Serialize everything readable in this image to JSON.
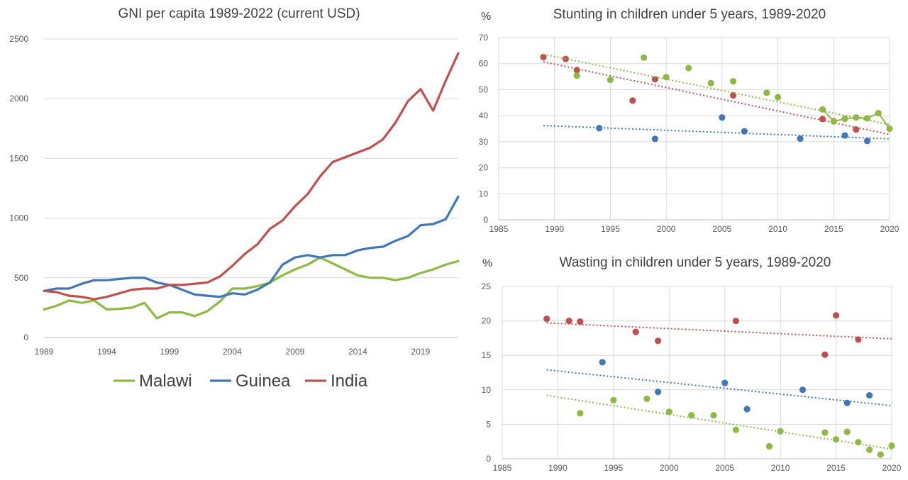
{
  "colors": {
    "Malawi": "#8db944",
    "Guinea": "#3f77b8",
    "India": "#c0504d",
    "grid": "#d9d9d9",
    "axis": "#bfbfbf",
    "text": "#595959"
  },
  "chart_data": [
    {
      "type": "line",
      "title": "GNI per capita 1989-2022 (current USD)",
      "xlabel": "",
      "ylabel": "",
      "xlim": [
        1989,
        2022
      ],
      "ylim": [
        0,
        2500
      ],
      "yticks": [
        0,
        500,
        1000,
        1500,
        2000,
        2500
      ],
      "xticks": [
        1989,
        1994,
        1999,
        2004,
        2009,
        2014,
        2019
      ],
      "grid": "horizontal",
      "legend": "bottom",
      "x": [
        1989,
        1990,
        1991,
        1992,
        1993,
        1994,
        1995,
        1996,
        1997,
        1998,
        1999,
        2000,
        2001,
        2002,
        2003,
        2004,
        2005,
        2006,
        2007,
        2008,
        2009,
        2010,
        2011,
        2012,
        2013,
        2014,
        2015,
        2016,
        2017,
        2018,
        2019,
        2020,
        2021,
        2022
      ],
      "series": [
        {
          "name": "Malawi",
          "color_key": "Malawi",
          "values": [
            235,
            265,
            310,
            290,
            310,
            235,
            240,
            250,
            290,
            160,
            210,
            210,
            180,
            220,
            300,
            410,
            410,
            430,
            460,
            520,
            570,
            610,
            670,
            620,
            570,
            520,
            500,
            500,
            480,
            500,
            540,
            570,
            610,
            640
          ]
        },
        {
          "name": "Guinea",
          "color_key": "Guinea",
          "values": [
            390,
            410,
            410,
            450,
            480,
            480,
            490,
            500,
            500,
            460,
            440,
            400,
            360,
            350,
            340,
            370,
            360,
            400,
            460,
            610,
            670,
            690,
            670,
            690,
            690,
            730,
            750,
            760,
            810,
            850,
            940,
            950,
            990,
            1180
          ]
        },
        {
          "name": "India",
          "color_key": "India",
          "values": [
            390,
            380,
            350,
            340,
            320,
            340,
            370,
            400,
            410,
            410,
            440,
            440,
            450,
            460,
            510,
            600,
            700,
            780,
            910,
            980,
            1100,
            1200,
            1350,
            1470,
            1510,
            1550,
            1590,
            1660,
            1800,
            1980,
            2080,
            1900,
            2150,
            2380
          ]
        }
      ]
    },
    {
      "type": "scatter",
      "title": "Stunting in children under 5 years, 1989-2020",
      "ylabel": "%",
      "xlabel": "",
      "xlim": [
        1985,
        2020
      ],
      "ylim": [
        0,
        70
      ],
      "xticks": [
        1985,
        1990,
        1995,
        2000,
        2005,
        2010,
        2015,
        2020
      ],
      "yticks": [
        0,
        10,
        20,
        30,
        40,
        50,
        60,
        70
      ],
      "grid": "both",
      "series": [
        {
          "name": "India",
          "color_key": "India",
          "points": [
            [
              1989,
              62.5
            ],
            [
              1991,
              61.8
            ],
            [
              1992,
              57.5
            ],
            [
              1997,
              45.8
            ],
            [
              1999,
              54.0
            ],
            [
              2006,
              47.8
            ],
            [
              2014,
              38.7
            ],
            [
              2015,
              37.9
            ],
            [
              2017,
              34.7
            ]
          ],
          "trend": [
            [
              1989,
              60.7
            ],
            [
              2020,
              32.8
            ]
          ],
          "line": false
        },
        {
          "name": "Malawi",
          "color_key": "Malawi",
          "points": [
            [
              1992,
              55.4
            ],
            [
              1995,
              53.8
            ],
            [
              1998,
              62.3
            ],
            [
              2000,
              54.8
            ],
            [
              2002,
              58.3
            ],
            [
              2004,
              52.5
            ],
            [
              2006,
              53.2
            ],
            [
              2009,
              48.8
            ],
            [
              2010,
              47.1
            ],
            [
              2014,
              42.4
            ],
            [
              2015,
              37.8
            ],
            [
              2016,
              38.8
            ],
            [
              2017,
              39.3
            ],
            [
              2018,
              39.0
            ],
            [
              2019,
              41.0
            ],
            [
              2020,
              35.0
            ]
          ],
          "trend": [
            [
              1989,
              63.6
            ],
            [
              2020,
              36.6
            ]
          ],
          "line": true,
          "line_from": 2014
        },
        {
          "name": "Guinea",
          "color_key": "Guinea",
          "points": [
            [
              1994,
              35.2
            ],
            [
              1999,
              31.1
            ],
            [
              2005,
              39.3
            ],
            [
              2007,
              34.0
            ],
            [
              2012,
              31.2
            ],
            [
              2016,
              32.4
            ],
            [
              2018,
              30.3
            ]
          ],
          "trend": [
            [
              1989,
              36.2
            ],
            [
              2020,
              31.1
            ]
          ],
          "line": false
        }
      ]
    },
    {
      "type": "scatter",
      "title": "Wasting in children under 5 years, 1989-2020",
      "ylabel": "%",
      "xlabel": "",
      "xlim": [
        1985,
        2020
      ],
      "ylim": [
        0,
        25
      ],
      "xticks": [
        1985,
        1990,
        1995,
        2000,
        2005,
        2010,
        2015,
        2020
      ],
      "yticks": [
        0,
        5,
        10,
        15,
        20,
        25
      ],
      "grid": "both",
      "series": [
        {
          "name": "India",
          "color_key": "India",
          "points": [
            [
              1989,
              20.3
            ],
            [
              1991,
              20.0
            ],
            [
              1992,
              19.9
            ],
            [
              1997,
              18.4
            ],
            [
              1999,
              17.1
            ],
            [
              2006,
              20.0
            ],
            [
              2014,
              15.1
            ],
            [
              2015,
              20.8
            ],
            [
              2017,
              17.3
            ]
          ],
          "trend": [
            [
              1989,
              19.7
            ],
            [
              2020,
              17.4
            ]
          ]
        },
        {
          "name": "Guinea",
          "color_key": "Guinea",
          "points": [
            [
              1994,
              14.0
            ],
            [
              1999,
              9.7
            ],
            [
              2005,
              11.0
            ],
            [
              2007,
              7.2
            ],
            [
              2012,
              10.0
            ],
            [
              2016,
              8.1
            ],
            [
              2018,
              9.2
            ]
          ],
          "trend": [
            [
              1989,
              12.9
            ],
            [
              2020,
              7.7
            ]
          ]
        },
        {
          "name": "Malawi",
          "color_key": "Malawi",
          "points": [
            [
              1992,
              6.6
            ],
            [
              1995,
              8.5
            ],
            [
              1998,
              8.7
            ],
            [
              2000,
              6.8
            ],
            [
              2002,
              6.3
            ],
            [
              2004,
              6.3
            ],
            [
              2006,
              4.2
            ],
            [
              2009,
              1.8
            ],
            [
              2010,
              4.0
            ],
            [
              2014,
              3.8
            ],
            [
              2015,
              2.8
            ],
            [
              2016,
              3.9
            ],
            [
              2017,
              2.4
            ],
            [
              2018,
              1.3
            ],
            [
              2019,
              0.6
            ],
            [
              2020,
              1.9
            ]
          ],
          "trend": [
            [
              1989,
              9.2
            ],
            [
              2020,
              1.4
            ]
          ]
        }
      ]
    }
  ]
}
